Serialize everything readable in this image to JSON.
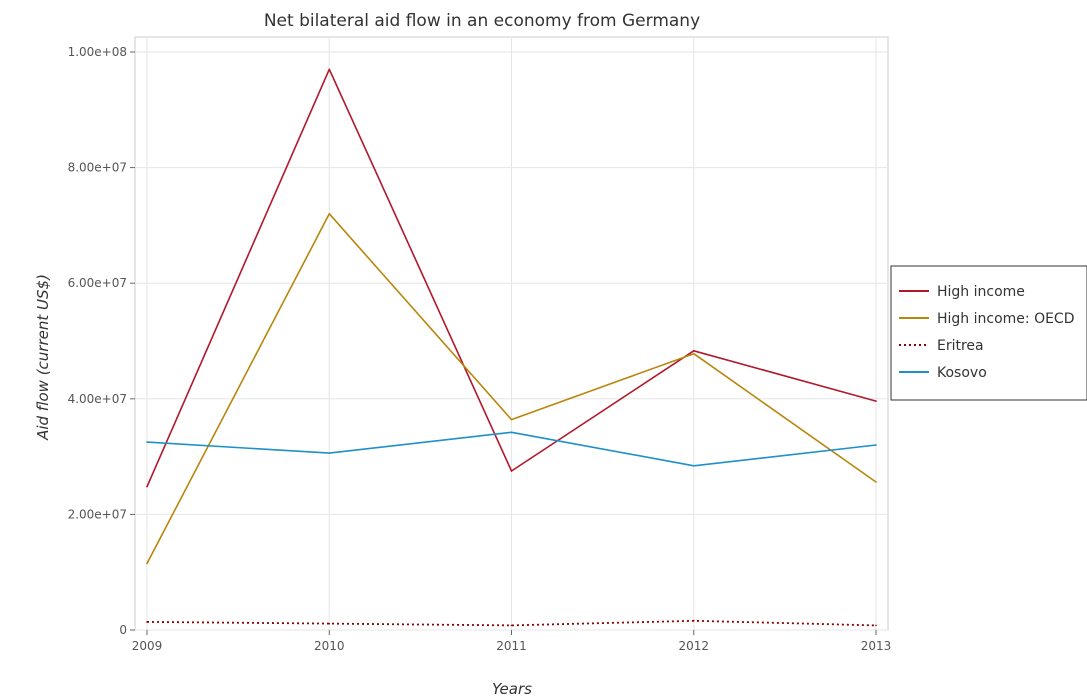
{
  "chart_data": {
    "type": "line",
    "title": "Net bilateral aid flow in an economy from Germany",
    "xlabel": "Years",
    "ylabel": "Aid flow (current US$)",
    "x": [
      "2009",
      "2010",
      "2011",
      "2012",
      "2013"
    ],
    "ylim": [
      0,
      100000000
    ],
    "yticks": [
      0,
      20000000,
      40000000,
      60000000,
      80000000,
      100000000
    ],
    "ytick_labels": [
      "0",
      "2.00e+07",
      "4.00e+07",
      "6.00e+07",
      "8.00e+07",
      "1.00e+08"
    ],
    "grid": true,
    "legend_position": "right",
    "series": [
      {
        "name": "High income",
        "color": "#b2182b",
        "dash": "solid",
        "values": [
          24800000,
          97000000,
          27500000,
          48300000,
          39600000
        ]
      },
      {
        "name": "High income: OECD",
        "color": "#b8860b",
        "dash": "solid",
        "values": [
          11500000,
          72000000,
          36400000,
          47800000,
          25600000
        ]
      },
      {
        "name": "Eritrea",
        "color": "#8b0000",
        "dash": "dotted",
        "values": [
          1400000,
          1100000,
          800000,
          1600000,
          800000
        ]
      },
      {
        "name": "Kosovo",
        "color": "#1e90c8",
        "dash": "solid",
        "values": [
          32500000,
          30600000,
          34200000,
          28400000,
          32000000
        ]
      }
    ]
  }
}
